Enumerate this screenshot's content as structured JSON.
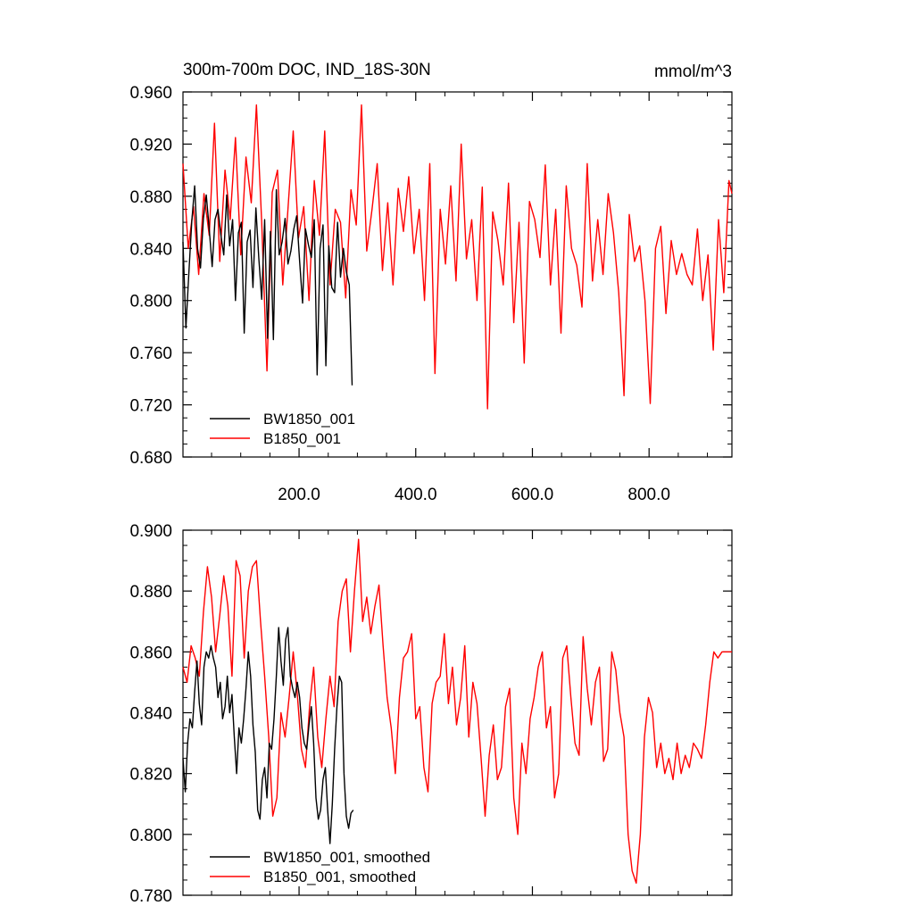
{
  "chart_data": [
    {
      "type": "line",
      "title": "300m-700m DOC, IND_18S-30N",
      "units": "mmol/m^3",
      "xlim": [
        1,
        942
      ],
      "ylim": [
        0.68,
        0.96
      ],
      "yticks": [
        {
          "value": 0.68,
          "label": "0.680"
        },
        {
          "value": 0.72,
          "label": "0.720"
        },
        {
          "value": 0.76,
          "label": "0.760"
        },
        {
          "value": 0.8,
          "label": "0.800"
        },
        {
          "value": 0.84,
          "label": "0.840"
        },
        {
          "value": 0.88,
          "label": "0.880"
        },
        {
          "value": 0.92,
          "label": "0.920"
        },
        {
          "value": 0.96,
          "label": "0.960"
        }
      ],
      "xticks": [
        {
          "value": 200,
          "label": "200.0"
        },
        {
          "value": 400,
          "label": "400.0"
        },
        {
          "value": 600,
          "label": "600.0"
        },
        {
          "value": 800,
          "label": "800.0"
        }
      ],
      "legend_position": "bottom-left",
      "series": [
        {
          "name": "BW1850_001",
          "color": "#000000",
          "x": [
            1,
            6,
            11,
            16,
            21,
            26,
            31,
            36,
            41,
            46,
            51,
            56,
            61,
            66,
            71,
            76,
            81,
            86,
            91,
            96,
            101,
            106,
            111,
            116,
            121,
            126,
            131,
            136,
            141,
            146,
            151,
            156,
            161,
            166,
            171,
            176,
            181,
            186,
            191,
            196,
            201,
            206,
            211,
            216,
            221,
            226,
            231,
            236,
            241,
            246,
            251,
            256,
            261,
            266,
            271,
            276,
            281,
            286,
            291
          ],
          "values": [
            0.845,
            0.779,
            0.82,
            0.86,
            0.888,
            0.84,
            0.825,
            0.863,
            0.881,
            0.855,
            0.826,
            0.862,
            0.87,
            0.85,
            0.835,
            0.881,
            0.842,
            0.862,
            0.8,
            0.852,
            0.86,
            0.775,
            0.845,
            0.854,
            0.81,
            0.871,
            0.832,
            0.801,
            0.862,
            0.771,
            0.853,
            0.77,
            0.885,
            0.835,
            0.845,
            0.863,
            0.828,
            0.838,
            0.855,
            0.865,
            0.83,
            0.798,
            0.855,
            0.843,
            0.833,
            0.862,
            0.743,
            0.84,
            0.858,
            0.75,
            0.842,
            0.81,
            0.806,
            0.86,
            0.818,
            0.84,
            0.822,
            0.812,
            0.735
          ]
        },
        {
          "name": "B1850_001",
          "color": "#ff0000",
          "x": [
            1,
            10,
            19,
            28,
            37,
            46,
            55,
            64,
            73,
            82,
            91,
            100,
            109,
            118,
            127,
            136,
            145,
            154,
            163,
            172,
            181,
            190,
            199,
            208,
            217,
            226,
            235,
            244,
            253,
            262,
            271,
            280,
            289,
            298,
            307,
            316,
            325,
            334,
            343,
            352,
            361,
            370,
            379,
            388,
            397,
            406,
            415,
            424,
            433,
            442,
            451,
            460,
            469,
            478,
            487,
            496,
            505,
            514,
            523,
            532,
            541,
            550,
            559,
            568,
            577,
            586,
            595,
            604,
            613,
            622,
            631,
            640,
            649,
            658,
            667,
            676,
            685,
            694,
            703,
            712,
            721,
            730,
            739,
            748,
            757,
            766,
            775,
            784,
            793,
            802,
            811,
            820,
            829,
            838,
            847,
            856,
            865,
            874,
            883,
            892,
            901,
            910,
            919,
            928,
            937,
            942
          ],
          "values": [
            0.905,
            0.84,
            0.872,
            0.82,
            0.882,
            0.85,
            0.936,
            0.83,
            0.9,
            0.862,
            0.925,
            0.835,
            0.91,
            0.875,
            0.95,
            0.86,
            0.746,
            0.883,
            0.9,
            0.812,
            0.87,
            0.93,
            0.848,
            0.872,
            0.8,
            0.892,
            0.85,
            0.93,
            0.812,
            0.87,
            0.86,
            0.802,
            0.885,
            0.858,
            0.95,
            0.838,
            0.87,
            0.905,
            0.823,
            0.875,
            0.812,
            0.886,
            0.853,
            0.895,
            0.836,
            0.87,
            0.8,
            0.905,
            0.744,
            0.87,
            0.828,
            0.888,
            0.815,
            0.92,
            0.832,
            0.862,
            0.8,
            0.887,
            0.717,
            0.868,
            0.846,
            0.812,
            0.89,
            0.783,
            0.86,
            0.752,
            0.876,
            0.862,
            0.833,
            0.904,
            0.812,
            0.87,
            0.775,
            0.888,
            0.84,
            0.827,
            0.795,
            0.905,
            0.815,
            0.862,
            0.82,
            0.882,
            0.852,
            0.806,
            0.727,
            0.866,
            0.83,
            0.842,
            0.8,
            0.721,
            0.84,
            0.857,
            0.79,
            0.846,
            0.82,
            0.836,
            0.82,
            0.812,
            0.855,
            0.8,
            0.835,
            0.762,
            0.862,
            0.806,
            0.892,
            0.882
          ]
        }
      ]
    },
    {
      "type": "line",
      "xlim": [
        1,
        942
      ],
      "ylim": [
        0.78,
        0.9
      ],
      "yticks": [
        {
          "value": 0.78,
          "label": "0.780"
        },
        {
          "value": 0.8,
          "label": "0.800"
        },
        {
          "value": 0.82,
          "label": "0.820"
        },
        {
          "value": 0.84,
          "label": "0.840"
        },
        {
          "value": 0.86,
          "label": "0.860"
        },
        {
          "value": 0.88,
          "label": "0.880"
        },
        {
          "value": 0.9,
          "label": "0.900"
        }
      ],
      "legend_position": "bottom-left",
      "series": [
        {
          "name": "BW1850_001, smoothed",
          "color": "#000000",
          "x": [
            1,
            5,
            9,
            13,
            17,
            21,
            25,
            29,
            33,
            37,
            41,
            45,
            49,
            53,
            57,
            61,
            65,
            69,
            73,
            77,
            81,
            85,
            89,
            93,
            97,
            101,
            105,
            109,
            113,
            117,
            121,
            125,
            129,
            133,
            137,
            141,
            145,
            149,
            153,
            157,
            161,
            165,
            169,
            173,
            177,
            181,
            185,
            189,
            193,
            197,
            201,
            205,
            209,
            213,
            217,
            221,
            225,
            229,
            233,
            237,
            241,
            245,
            249,
            253,
            257,
            261,
            265,
            269,
            273,
            277,
            281,
            285,
            289,
            293
          ],
          "values": [
            0.825,
            0.814,
            0.83,
            0.838,
            0.835,
            0.847,
            0.857,
            0.843,
            0.836,
            0.855,
            0.86,
            0.858,
            0.862,
            0.858,
            0.855,
            0.845,
            0.85,
            0.838,
            0.842,
            0.852,
            0.84,
            0.846,
            0.832,
            0.82,
            0.835,
            0.83,
            0.838,
            0.848,
            0.86,
            0.852,
            0.836,
            0.827,
            0.808,
            0.805,
            0.818,
            0.822,
            0.812,
            0.83,
            0.828,
            0.838,
            0.852,
            0.868,
            0.857,
            0.849,
            0.864,
            0.868,
            0.852,
            0.848,
            0.845,
            0.85,
            0.845,
            0.835,
            0.83,
            0.828,
            0.836,
            0.842,
            0.83,
            0.812,
            0.805,
            0.808,
            0.818,
            0.822,
            0.808,
            0.797,
            0.81,
            0.828,
            0.842,
            0.852,
            0.85,
            0.82,
            0.806,
            0.802,
            0.807,
            0.808
          ]
        },
        {
          "name": "B1850_001, smoothed",
          "color": "#ff0000",
          "x": [
            1,
            8,
            15,
            22,
            29,
            36,
            43,
            50,
            57,
            64,
            71,
            78,
            85,
            92,
            99,
            106,
            113,
            120,
            127,
            134,
            141,
            148,
            155,
            162,
            169,
            176,
            183,
            190,
            197,
            204,
            211,
            218,
            225,
            232,
            239,
            246,
            253,
            260,
            267,
            274,
            281,
            288,
            295,
            302,
            309,
            316,
            323,
            330,
            337,
            344,
            351,
            358,
            365,
            372,
            379,
            386,
            393,
            400,
            407,
            414,
            421,
            428,
            435,
            442,
            449,
            456,
            463,
            470,
            477,
            484,
            491,
            498,
            505,
            512,
            519,
            526,
            533,
            540,
            547,
            554,
            561,
            568,
            575,
            582,
            589,
            596,
            603,
            610,
            617,
            624,
            631,
            638,
            645,
            652,
            659,
            666,
            673,
            680,
            687,
            694,
            701,
            708,
            715,
            722,
            729,
            736,
            743,
            750,
            757,
            764,
            771,
            778,
            785,
            792,
            799,
            806,
            813,
            820,
            827,
            834,
            841,
            848,
            855,
            862,
            869,
            876,
            883,
            890,
            897,
            904,
            911,
            918,
            925,
            932,
            939,
            942
          ],
          "values": [
            0.855,
            0.85,
            0.862,
            0.858,
            0.852,
            0.873,
            0.888,
            0.878,
            0.86,
            0.872,
            0.885,
            0.875,
            0.852,
            0.89,
            0.885,
            0.858,
            0.88,
            0.888,
            0.89,
            0.87,
            0.852,
            0.832,
            0.806,
            0.812,
            0.84,
            0.832,
            0.845,
            0.86,
            0.846,
            0.828,
            0.822,
            0.842,
            0.855,
            0.832,
            0.822,
            0.838,
            0.852,
            0.842,
            0.87,
            0.88,
            0.884,
            0.86,
            0.88,
            0.897,
            0.87,
            0.878,
            0.866,
            0.875,
            0.882,
            0.862,
            0.845,
            0.835,
            0.82,
            0.845,
            0.858,
            0.86,
            0.866,
            0.838,
            0.842,
            0.822,
            0.814,
            0.843,
            0.85,
            0.852,
            0.866,
            0.843,
            0.855,
            0.836,
            0.845,
            0.862,
            0.832,
            0.85,
            0.843,
            0.825,
            0.806,
            0.826,
            0.836,
            0.818,
            0.822,
            0.842,
            0.848,
            0.812,
            0.8,
            0.83,
            0.82,
            0.838,
            0.845,
            0.855,
            0.86,
            0.835,
            0.842,
            0.812,
            0.82,
            0.858,
            0.862,
            0.845,
            0.83,
            0.826,
            0.865,
            0.848,
            0.836,
            0.85,
            0.855,
            0.824,
            0.828,
            0.86,
            0.854,
            0.84,
            0.832,
            0.8,
            0.788,
            0.784,
            0.8,
            0.832,
            0.845,
            0.84,
            0.822,
            0.83,
            0.82,
            0.825,
            0.818,
            0.83,
            0.82,
            0.826,
            0.822,
            0.83,
            0.828,
            0.825,
            0.836,
            0.85,
            0.86,
            0.858,
            0.86,
            0.86,
            0.86,
            0.86
          ]
        }
      ]
    }
  ]
}
